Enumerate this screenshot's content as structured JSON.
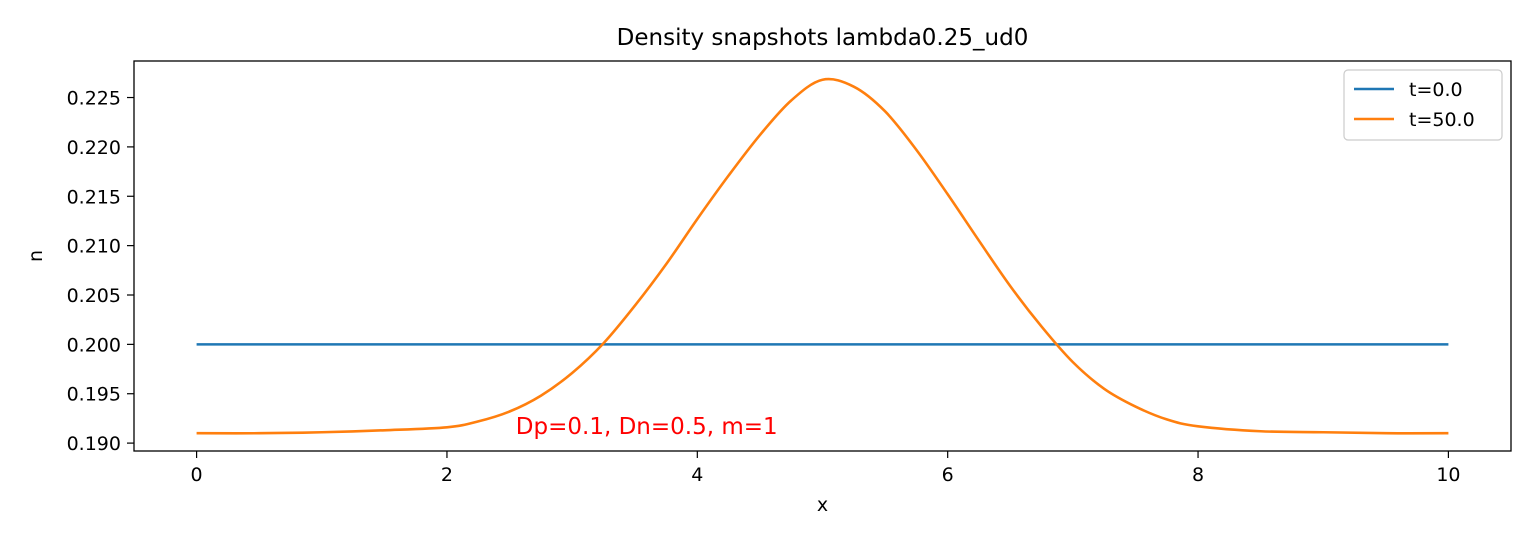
{
  "chart_data": {
    "type": "line",
    "title": "Density snapshots  lambda0.25_ud0",
    "xlabel": "x",
    "ylabel": "n",
    "xlim": [
      -0.5,
      10.5
    ],
    "ylim": [
      0.1892,
      0.2287
    ],
    "xticks": [
      0,
      2,
      4,
      6,
      8,
      10
    ],
    "xtick_labels": [
      "0",
      "2",
      "4",
      "6",
      "8",
      "10"
    ],
    "yticks": [
      0.19,
      0.195,
      0.2,
      0.205,
      0.21,
      0.215,
      0.22,
      0.225
    ],
    "ytick_labels": [
      "0.190",
      "0.195",
      "0.200",
      "0.205",
      "0.210",
      "0.215",
      "0.220",
      "0.225"
    ],
    "grid": false,
    "legend_position": "top-right",
    "series": [
      {
        "name": "t=0.0",
        "color": "#1f77b4",
        "x": [
          0,
          10
        ],
        "y": [
          0.2,
          0.2
        ]
      },
      {
        "name": "t=50.0",
        "color": "#ff7f0e",
        "x": [
          0,
          0.5,
          1,
          1.5,
          2,
          2.25,
          2.5,
          2.75,
          3,
          3.25,
          3.5,
          3.75,
          4,
          4.25,
          4.5,
          4.75,
          5,
          5.25,
          5.5,
          5.75,
          6,
          6.25,
          6.5,
          6.75,
          7,
          7.25,
          7.5,
          7.75,
          8,
          8.5,
          9,
          9.5,
          10
        ],
        "y": [
          0.191,
          0.191,
          0.1911,
          0.1913,
          0.1916,
          0.1922,
          0.1932,
          0.1948,
          0.1971,
          0.2001,
          0.2039,
          0.2081,
          0.2127,
          0.2171,
          0.2212,
          0.2247,
          0.2268,
          0.2261,
          0.2236,
          0.2197,
          0.2152,
          0.2105,
          0.2059,
          0.2018,
          0.1982,
          0.1955,
          0.1937,
          0.1924,
          0.1917,
          0.1912,
          0.1911,
          0.191,
          0.191
        ]
      }
    ],
    "annotations": [
      {
        "text": "Dp=0.1, Dn=0.5, m=1",
        "x": 2.55,
        "y": 0.1909,
        "color": "#ff0000"
      }
    ]
  }
}
